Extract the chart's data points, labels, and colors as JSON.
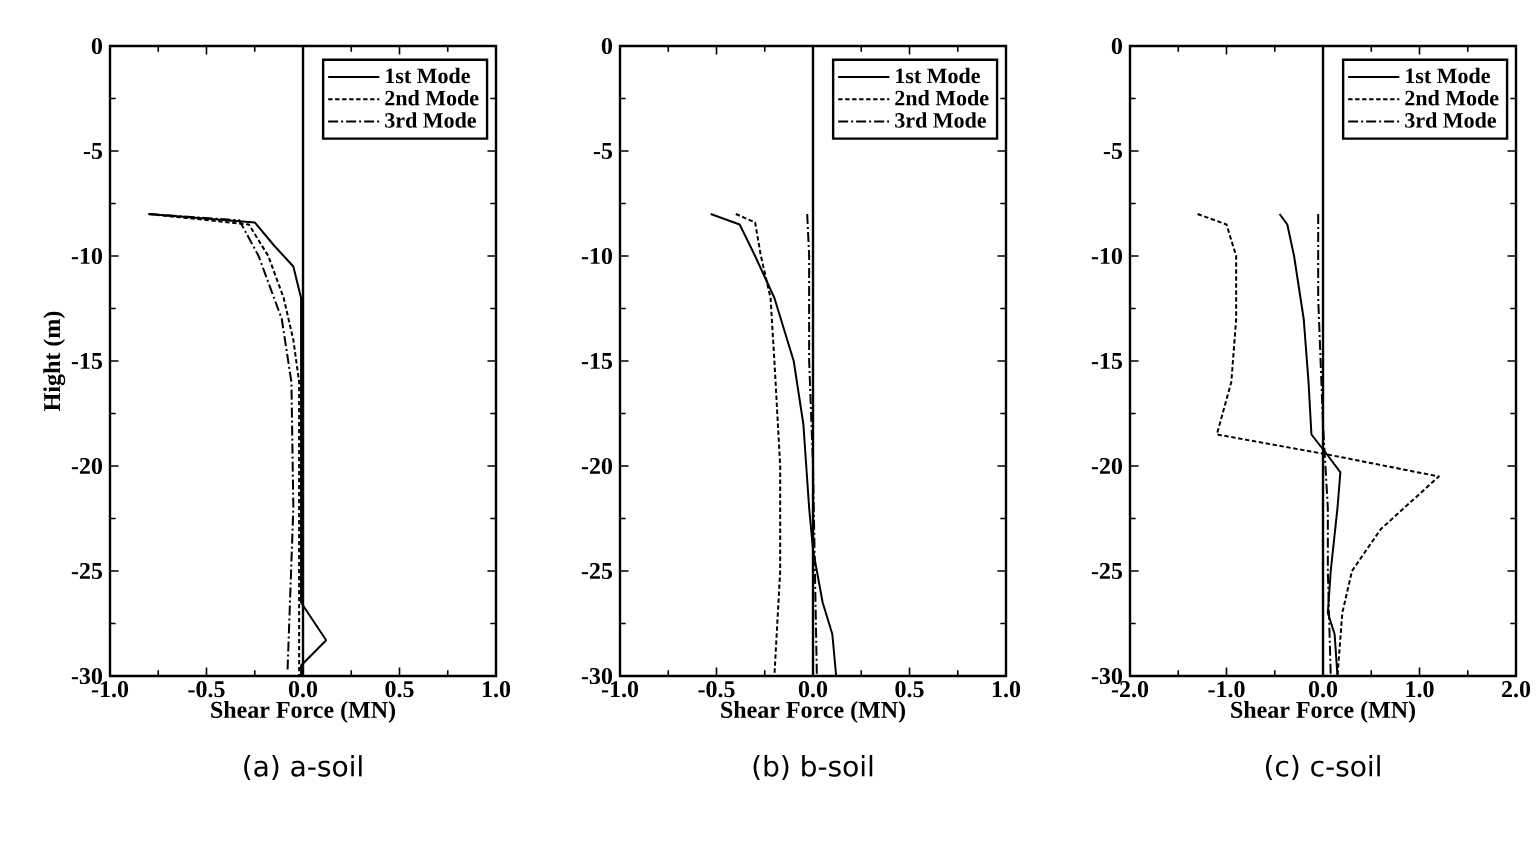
{
  "chart_data": [
    {
      "type": "line",
      "title": "(a) a-soil",
      "xlabel": "Shear Force (MN)",
      "ylabel": "Hight (m)",
      "xlim": [
        -1,
        1
      ],
      "ylim": [
        -30,
        0
      ],
      "xticks": [
        {
          "value": -1,
          "label": "-1.0"
        },
        {
          "value": -0.5,
          "label": "-0.5"
        },
        {
          "value": 0,
          "label": "0.0"
        },
        {
          "value": 0.5,
          "label": "0.5"
        },
        {
          "value": 1,
          "label": "1.0"
        }
      ],
      "yticks": [
        0,
        -5,
        -10,
        -15,
        -20,
        -25,
        -30
      ],
      "legend": "top right",
      "grid": false,
      "ref_lines": [
        {
          "axis": "x",
          "value": 0,
          "color": "#000000"
        }
      ],
      "series": [
        {
          "name": "1st Mode",
          "color": "#000000",
          "line_style": "solid",
          "x": [
            -0.8,
            -0.25,
            -0.15,
            -0.05,
            -0.01,
            -0.01,
            -0.01,
            -0.01,
            0.12,
            -0.01,
            -0.01
          ],
          "values": [
            -8,
            -8.4,
            -9.5,
            -10.5,
            -12,
            -15,
            -20,
            -26.5,
            -28.3,
            -29.5,
            -30
          ]
        },
        {
          "name": "2nd Mode",
          "color": "#000000",
          "line_style": "dashed",
          "x": [
            -0.8,
            -0.28,
            -0.18,
            -0.1,
            -0.05,
            -0.02,
            -0.02,
            -0.02,
            -0.02
          ],
          "values": [
            -8,
            -8.5,
            -10,
            -12,
            -14,
            -16,
            -20,
            -25,
            -30
          ]
        },
        {
          "name": "3rd Mode",
          "color": "#000000",
          "line_style": "dashdot",
          "x": [
            -0.8,
            -0.33,
            -0.23,
            -0.11,
            -0.06,
            -0.05,
            -0.08
          ],
          "values": [
            -8,
            -8.3,
            -10,
            -13,
            -16,
            -22,
            -29.7
          ]
        }
      ]
    },
    {
      "type": "line",
      "title": "(b) b-soil",
      "xlabel": "Shear Force (MN)",
      "xlim": [
        -1,
        1
      ],
      "ylim": [
        -30,
        0
      ],
      "xticks": [
        {
          "value": -1,
          "label": "-1.0"
        },
        {
          "value": -0.5,
          "label": "-0.5"
        },
        {
          "value": 0,
          "label": "0.0"
        },
        {
          "value": 0.5,
          "label": "0.5"
        },
        {
          "value": 1,
          "label": "1.0"
        }
      ],
      "yticks": [
        0,
        -5,
        -10,
        -15,
        -20,
        -25,
        -30
      ],
      "legend": "top right",
      "grid": false,
      "ref_lines": [
        {
          "axis": "x",
          "value": 0,
          "color": "#000000"
        }
      ],
      "series": [
        {
          "name": "1st Mode",
          "color": "#000000",
          "line_style": "solid",
          "x": [
            -0.53,
            -0.38,
            -0.3,
            -0.2,
            -0.1,
            -0.05,
            -0.02,
            0,
            0.05,
            0.1,
            0.12
          ],
          "values": [
            -8,
            -8.5,
            -10,
            -12,
            -15,
            -18,
            -22,
            -24,
            -26.5,
            -28,
            -30
          ]
        },
        {
          "name": "2nd Mode",
          "color": "#000000",
          "line_style": "dashed",
          "x": [
            -0.4,
            -0.3,
            -0.27,
            -0.22,
            -0.2,
            -0.17,
            -0.17,
            -0.2
          ],
          "values": [
            -8,
            -8.4,
            -10,
            -12,
            -15,
            -20,
            -25,
            -30
          ]
        },
        {
          "name": "3rd Mode",
          "color": "#000000",
          "line_style": "dashdot",
          "x": [
            -0.03,
            -0.02,
            -0.02,
            0,
            0.01,
            0.02
          ],
          "values": [
            -8,
            -10,
            -15,
            -20,
            -25,
            -30
          ]
        }
      ]
    },
    {
      "type": "line",
      "title": "(c) c-soil",
      "xlabel": "Shear Force (MN)",
      "xlim": [
        -2,
        2
      ],
      "ylim": [
        -30,
        0
      ],
      "xticks": [
        {
          "value": -2,
          "label": "-2.0"
        },
        {
          "value": -1,
          "label": "-1.0"
        },
        {
          "value": 0,
          "label": "0.0"
        },
        {
          "value": 1,
          "label": "1.0"
        },
        {
          "value": 2,
          "label": "2.0"
        }
      ],
      "yticks": [
        0,
        -5,
        -10,
        -15,
        -20,
        -25,
        -30
      ],
      "legend": "top right",
      "grid": false,
      "ref_lines": [
        {
          "axis": "x",
          "value": 0,
          "color": "#000000"
        }
      ],
      "series": [
        {
          "name": "1st Mode",
          "color": "#000000",
          "line_style": "solid",
          "x": [
            -0.45,
            -0.37,
            -0.3,
            -0.2,
            -0.15,
            -0.12,
            0.05,
            0.18,
            0.15,
            0.08,
            0.05,
            0.12,
            0.15
          ],
          "values": [
            -8,
            -8.5,
            -10,
            -13,
            -16,
            -18.5,
            -19.5,
            -20.3,
            -22,
            -25,
            -27,
            -28,
            -30
          ]
        },
        {
          "name": "2nd Mode",
          "color": "#000000",
          "line_style": "dashed",
          "x": [
            -1.3,
            -1.0,
            -0.9,
            -0.9,
            -0.95,
            -1.1,
            0.1,
            1.2,
            0.6,
            0.3,
            0.2,
            0.15
          ],
          "values": [
            -8,
            -8.5,
            -10,
            -13,
            -16,
            -18.5,
            -19.5,
            -20.5,
            -23,
            -25,
            -27,
            -30
          ]
        },
        {
          "name": "3rd Mode",
          "color": "#000000",
          "line_style": "dashdot",
          "x": [
            -0.05,
            -0.05,
            0,
            0.05,
            0.05,
            0.08
          ],
          "values": [
            -8,
            -12,
            -18,
            -22,
            -25,
            -30
          ]
        }
      ]
    }
  ]
}
